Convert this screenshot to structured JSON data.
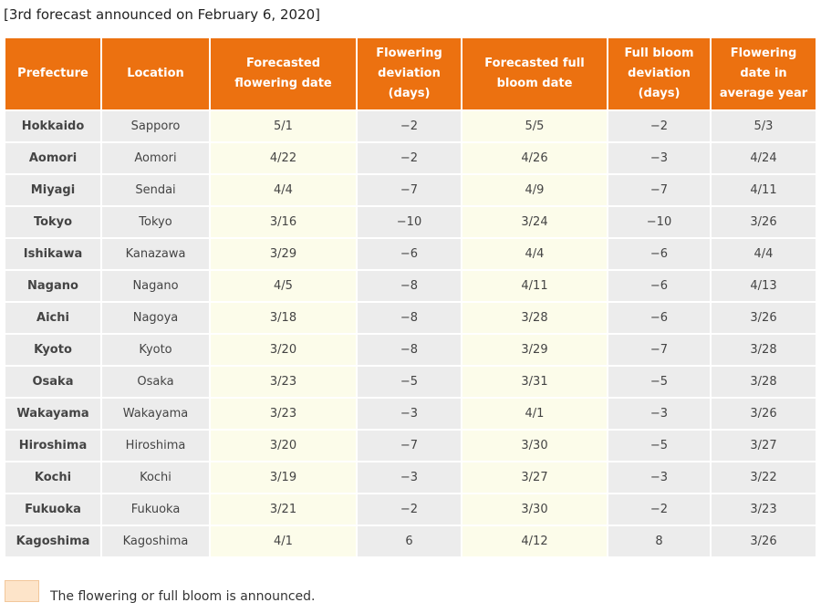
{
  "caption": "[3rd forecast announced on February 6, 2020]",
  "table": {
    "headers": [
      "Prefecture",
      "Location",
      "Forecasted flowering date",
      "Flowering deviation (days)",
      "Forecasted full bloom date",
      "Full bloom deviation (days)",
      "Flowering date in average year"
    ],
    "rows": [
      [
        "Hokkaido",
        "Sapporo",
        "5/1",
        "−2",
        "5/5",
        "−2",
        "5/3"
      ],
      [
        "Aomori",
        "Aomori",
        "4/22",
        "−2",
        "4/26",
        "−3",
        "4/24"
      ],
      [
        "Miyagi",
        "Sendai",
        "4/4",
        "−7",
        "4/9",
        "−7",
        "4/11"
      ],
      [
        "Tokyo",
        "Tokyo",
        "3/16",
        "−10",
        "3/24",
        "−10",
        "3/26"
      ],
      [
        "Ishikawa",
        "Kanazawa",
        "3/29",
        "−6",
        "4/4",
        "−6",
        "4/4"
      ],
      [
        "Nagano",
        "Nagano",
        "4/5",
        "−8",
        "4/11",
        "−6",
        "4/13"
      ],
      [
        "Aichi",
        "Nagoya",
        "3/18",
        "−8",
        "3/28",
        "−6",
        "3/26"
      ],
      [
        "Kyoto",
        "Kyoto",
        "3/20",
        "−8",
        "3/29",
        "−7",
        "3/28"
      ],
      [
        "Osaka",
        "Osaka",
        "3/23",
        "−5",
        "3/31",
        "−5",
        "3/28"
      ],
      [
        "Wakayama",
        "Wakayama",
        "3/23",
        "−3",
        "4/1",
        "−3",
        "3/26"
      ],
      [
        "Hiroshima",
        "Hiroshima",
        "3/20",
        "−7",
        "3/30",
        "−5",
        "3/27"
      ],
      [
        "Kochi",
        "Kochi",
        "3/19",
        "−3",
        "3/27",
        "−3",
        "3/22"
      ],
      [
        "Fukuoka",
        "Fukuoka",
        "3/21",
        "−2",
        "3/30",
        "−2",
        "3/23"
      ],
      [
        "Kagoshima",
        "Kagoshima",
        "4/1",
        "6",
        "4/12",
        "8",
        "3/26"
      ]
    ]
  },
  "legend": {
    "text": "The flowering or full bloom is announced."
  }
}
